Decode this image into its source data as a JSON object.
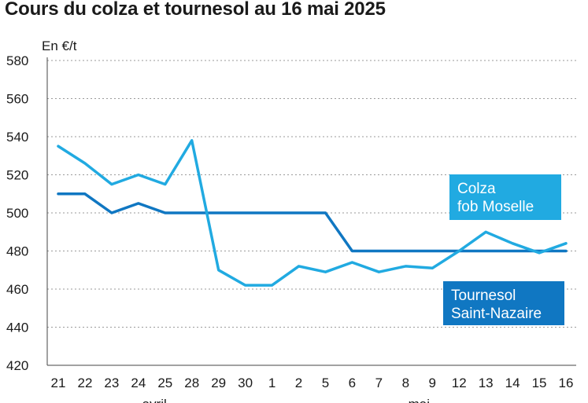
{
  "chart_data": {
    "type": "line",
    "title": "Cours du colza et tournesol au 16 mai 2025",
    "ylabel": "En €/t",
    "ylim": [
      420,
      580
    ],
    "yticks": [
      420,
      440,
      460,
      480,
      500,
      520,
      540,
      560,
      580
    ],
    "grid": true,
    "x": [
      "21",
      "22",
      "23",
      "24",
      "25",
      "28",
      "29",
      "30",
      "1",
      "2",
      "5",
      "6",
      "7",
      "8",
      "9",
      "12",
      "13",
      "14",
      "15",
      "16"
    ],
    "month_labels": [
      "avril",
      "mai"
    ],
    "series": [
      {
        "name": "Tournesol Saint-Nazaire",
        "label_lines": [
          "Tournesol",
          "Saint-Nazaire"
        ],
        "color": "#1077c2",
        "values": [
          510,
          510,
          500,
          505,
          500,
          500,
          500,
          500,
          500,
          500,
          500,
          480,
          480,
          480,
          480,
          480,
          480,
          480,
          480,
          480
        ]
      },
      {
        "name": "Colza fob Moselle",
        "label_lines": [
          "Colza",
          "fob Moselle"
        ],
        "color": "#21aae1",
        "values": [
          535,
          526,
          515,
          520,
          515,
          538,
          470,
          462,
          462,
          472,
          469,
          474,
          469,
          472,
          471,
          480,
          490,
          484,
          479,
          484
        ]
      }
    ]
  }
}
